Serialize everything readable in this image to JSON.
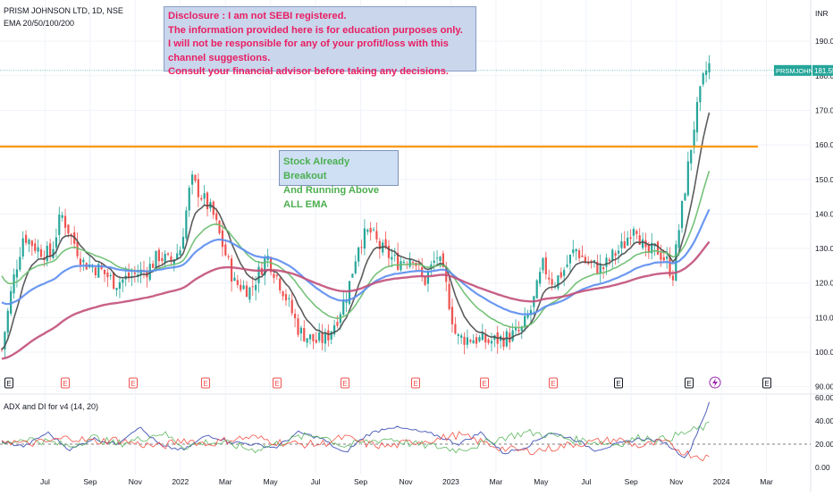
{
  "header": {
    "symbol_line": "PRISM JOHNSON LTD, 1D, NSE",
    "ema_line": "EMA 20/50/100/200",
    "currency": "INR"
  },
  "annotations": {
    "disclaimer": [
      "Disclosure : I am not SEBI registered.",
      "The information provided here is for education purposes only.",
      "I will not be responsible for any of your profit/loss with this channel suggestions.",
      "Consult your financial advisor before taking any decisions."
    ],
    "breakout_note": [
      "Stock Already Breakout",
      "And Running Above ALL EMA"
    ]
  },
  "colors": {
    "up": "#26a69a",
    "down": "#ef5350",
    "ema20": "#4a4a4a",
    "ema50": "#66bb6a",
    "ema100": "#5b8def",
    "ema200": "#c2507a",
    "resistance": "#ff9800",
    "adx": "#3f51b5",
    "di_plus": "#4caf50",
    "di_minus": "#f44336",
    "tag": "#b0b3bf"
  },
  "chart_data": [
    {
      "type": "candlestick",
      "title": "PRISM JOHNSON LTD, 1D, NSE",
      "indicators": [
        "EMA 20",
        "EMA 50",
        "EMA 100",
        "EMA 200"
      ],
      "x_ticks": [
        "Jul",
        "Sep",
        "Nov",
        "2022",
        "Mar",
        "May",
        "Jul",
        "Sep",
        "Nov",
        "2023",
        "Mar",
        "May",
        "Jul",
        "Sep",
        "Nov",
        "2024",
        "Mar"
      ],
      "y_ticks": [
        90,
        100,
        110,
        120,
        130,
        140,
        150,
        160,
        170,
        180,
        190
      ],
      "ylim": [
        88,
        198
      ],
      "last_price_label": "PRSMJOHNSN",
      "last_price": "181.55",
      "resistance_level": 159.5,
      "close_approx": [
        {
          "x": "2021-05",
          "close": 128
        },
        {
          "x": "2021-06",
          "close": 131
        },
        {
          "x": "2021-07",
          "close": 133
        },
        {
          "x": "2021-08",
          "close": 126
        },
        {
          "x": "2021-09",
          "close": 122
        },
        {
          "x": "2021-10",
          "close": 121
        },
        {
          "x": "2021-11",
          "close": 124
        },
        {
          "x": "2021-12",
          "close": 129
        },
        {
          "x": "2022-01",
          "close": 150
        },
        {
          "x": "2022-02",
          "close": 133
        },
        {
          "x": "2022-03",
          "close": 120
        },
        {
          "x": "2022-04",
          "close": 122
        },
        {
          "x": "2022-05",
          "close": 108
        },
        {
          "x": "2022-06",
          "close": 104
        },
        {
          "x": "2022-07",
          "close": 106
        },
        {
          "x": "2022-08",
          "close": 128
        },
        {
          "x": "2022-09",
          "close": 127
        },
        {
          "x": "2022-10",
          "close": 124
        },
        {
          "x": "2022-11",
          "close": 126
        },
        {
          "x": "2022-12",
          "close": 122
        },
        {
          "x": "2023-01",
          "close": 104
        },
        {
          "x": "2023-02",
          "close": 103
        },
        {
          "x": "2023-03",
          "close": 104
        },
        {
          "x": "2023-04",
          "close": 113
        },
        {
          "x": "2023-05",
          "close": 122
        },
        {
          "x": "2023-06",
          "close": 126
        },
        {
          "x": "2023-07",
          "close": 126
        },
        {
          "x": "2023-08",
          "close": 130
        },
        {
          "x": "2023-09",
          "close": 133
        },
        {
          "x": "2023-10",
          "close": 126
        },
        {
          "x": "2023-11",
          "close": 165
        },
        {
          "x": "2023-12",
          "close": 181.55
        }
      ],
      "event_markers": [
        "E",
        "E",
        "E",
        "E",
        "E",
        "E",
        "E",
        "E",
        "E",
        "E",
        "E",
        "E"
      ]
    },
    {
      "type": "line",
      "title": "ADX and DI for v4 (14, 20)",
      "y_ticks": [
        0,
        20,
        40,
        60
      ],
      "tick_labels": [
        "0.00",
        "20.00",
        "40.00",
        "60.00"
      ],
      "ylim": [
        0,
        68
      ],
      "threshold": 20,
      "series": [
        {
          "name": "ADX",
          "values": [
            22,
            18,
            30,
            15,
            25,
            20,
            35,
            18,
            15,
            28,
            22,
            20,
            17,
            30,
            25,
            12,
            28,
            35,
            32,
            28,
            20,
            30,
            12,
            18,
            30,
            25,
            15,
            20,
            25,
            22,
            8,
            55
          ]
        },
        {
          "name": "+DI",
          "values": [
            20,
            25,
            22,
            18,
            26,
            20,
            24,
            30,
            18,
            22,
            20,
            15,
            20,
            26,
            28,
            18,
            22,
            25,
            20,
            18,
            15,
            20,
            26,
            30,
            28,
            24,
            22,
            20,
            26,
            24,
            30,
            36
          ]
        },
        {
          "name": "-DI",
          "values": [
            24,
            20,
            22,
            26,
            22,
            24,
            20,
            18,
            24,
            20,
            24,
            26,
            22,
            20,
            20,
            26,
            20,
            18,
            22,
            24,
            28,
            22,
            16,
            14,
            16,
            20,
            22,
            24,
            18,
            22,
            12,
            8
          ]
        }
      ]
    }
  ]
}
